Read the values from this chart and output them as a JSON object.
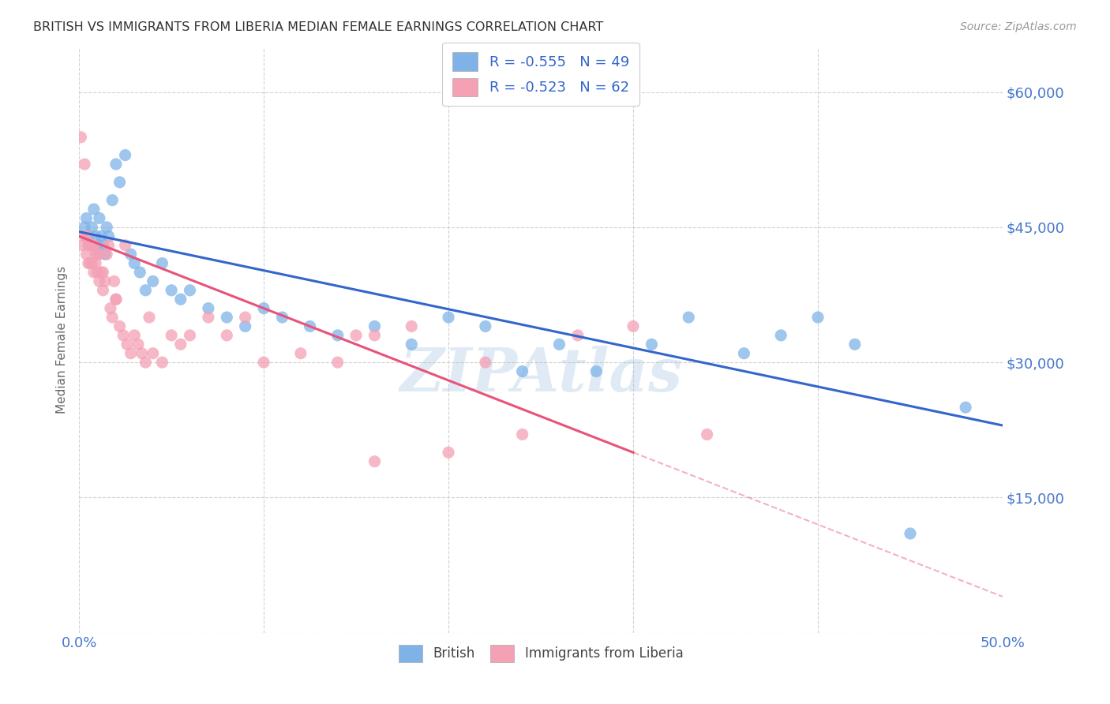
{
  "title": "BRITISH VS IMMIGRANTS FROM LIBERIA MEDIAN FEMALE EARNINGS CORRELATION CHART",
  "source": "Source: ZipAtlas.com",
  "ylabel": "Median Female Earnings",
  "xlim": [
    0.0,
    0.5
  ],
  "ylim": [
    0,
    65000
  ],
  "yticks": [
    0,
    15000,
    30000,
    45000,
    60000
  ],
  "ytick_labels": [
    "",
    "$15,000",
    "$30,000",
    "$45,000",
    "$60,000"
  ],
  "xticks": [
    0.0,
    0.1,
    0.2,
    0.3,
    0.4,
    0.5
  ],
  "xtick_labels": [
    "0.0%",
    "",
    "",
    "",
    "",
    "50.0%"
  ],
  "legend_r1": "-0.555",
  "legend_n1": "49",
  "legend_r2": "-0.523",
  "legend_n2": "62",
  "blue_color": "#7FB3E8",
  "pink_color": "#F4A0B5",
  "line_blue": "#3366CC",
  "line_pink": "#E8537A",
  "watermark": "ZIPAtlas",
  "watermark_color": "#99BBDD",
  "axis_color": "#4477CC",
  "title_color": "#333333",
  "background_color": "#FFFFFF",
  "blue_intercept": 44500,
  "blue_slope": -43000,
  "pink_intercept": 44000,
  "pink_slope": -80000,
  "british_x": [
    0.003,
    0.004,
    0.005,
    0.006,
    0.007,
    0.008,
    0.009,
    0.01,
    0.011,
    0.012,
    0.013,
    0.014,
    0.015,
    0.016,
    0.018,
    0.02,
    0.022,
    0.025,
    0.028,
    0.03,
    0.033,
    0.036,
    0.04,
    0.045,
    0.05,
    0.055,
    0.06,
    0.07,
    0.08,
    0.09,
    0.1,
    0.11,
    0.125,
    0.14,
    0.16,
    0.18,
    0.2,
    0.22,
    0.24,
    0.26,
    0.28,
    0.31,
    0.33,
    0.36,
    0.38,
    0.4,
    0.42,
    0.45,
    0.48
  ],
  "british_y": [
    45000,
    46000,
    44000,
    43000,
    45000,
    47000,
    44000,
    43000,
    46000,
    44000,
    43000,
    42000,
    45000,
    44000,
    48000,
    52000,
    50000,
    53000,
    42000,
    41000,
    40000,
    38000,
    39000,
    41000,
    38000,
    37000,
    38000,
    36000,
    35000,
    34000,
    36000,
    35000,
    34000,
    33000,
    34000,
    32000,
    35000,
    34000,
    29000,
    32000,
    29000,
    32000,
    35000,
    31000,
    33000,
    35000,
    32000,
    11000,
    25000
  ],
  "liberia_x": [
    0.001,
    0.002,
    0.003,
    0.003,
    0.004,
    0.004,
    0.005,
    0.005,
    0.006,
    0.006,
    0.007,
    0.007,
    0.008,
    0.008,
    0.009,
    0.009,
    0.01,
    0.01,
    0.011,
    0.011,
    0.012,
    0.013,
    0.013,
    0.014,
    0.015,
    0.016,
    0.017,
    0.018,
    0.019,
    0.02,
    0.022,
    0.024,
    0.026,
    0.028,
    0.03,
    0.032,
    0.034,
    0.036,
    0.038,
    0.04,
    0.045,
    0.05,
    0.06,
    0.07,
    0.08,
    0.09,
    0.1,
    0.12,
    0.14,
    0.16,
    0.18,
    0.2,
    0.22,
    0.24,
    0.27,
    0.3,
    0.02,
    0.025,
    0.055,
    0.15,
    0.16,
    0.34
  ],
  "liberia_y": [
    55000,
    43000,
    52000,
    44000,
    44000,
    42000,
    43000,
    41000,
    43000,
    41000,
    43000,
    41000,
    43000,
    40000,
    42000,
    41000,
    42000,
    40000,
    42000,
    39000,
    40000,
    40000,
    38000,
    39000,
    42000,
    43000,
    36000,
    35000,
    39000,
    37000,
    34000,
    33000,
    32000,
    31000,
    33000,
    32000,
    31000,
    30000,
    35000,
    31000,
    30000,
    33000,
    33000,
    35000,
    33000,
    35000,
    30000,
    31000,
    30000,
    33000,
    34000,
    20000,
    30000,
    22000,
    33000,
    34000,
    37000,
    43000,
    32000,
    33000,
    19000,
    22000
  ]
}
